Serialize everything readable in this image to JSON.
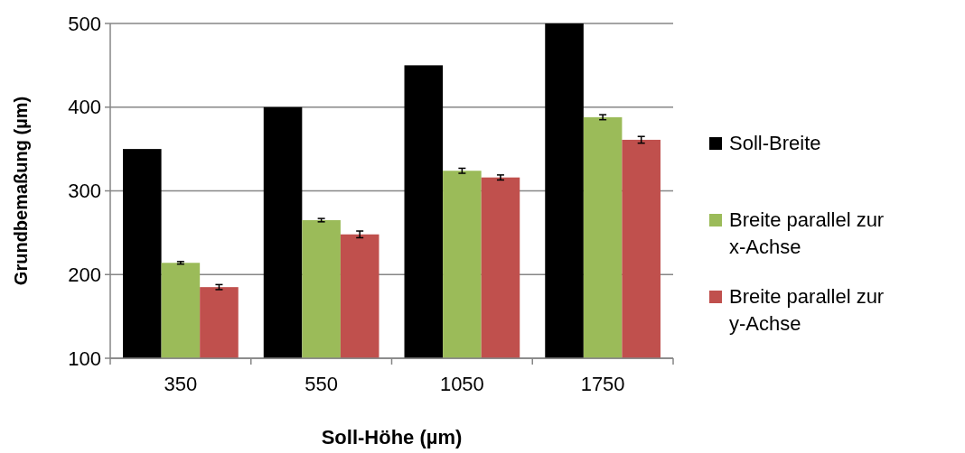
{
  "chart_data": {
    "type": "bar",
    "xlabel": "Soll-Höhe (µm)",
    "ylabel": "Grundbemaßung (µm)",
    "categories": [
      "350",
      "550",
      "1050",
      "1750"
    ],
    "series": [
      {
        "name": "Soll-Breite",
        "color": "#000000",
        "values": [
          350,
          400,
          450,
          500
        ]
      },
      {
        "name": "Breite parallel zur x-Achse",
        "color": "#9bbb59",
        "values": [
          214,
          265,
          324,
          388
        ],
        "errors": [
          1.5,
          2,
          3,
          3
        ]
      },
      {
        "name": "Breite parallel zur y-Achse",
        "color": "#c0504d",
        "values": [
          185,
          248,
          316,
          361
        ],
        "errors": [
          3,
          4,
          3,
          4
        ]
      }
    ],
    "ylim": [
      100,
      500
    ],
    "yticks": [
      100,
      200,
      300,
      400,
      500
    ],
    "grid": "y",
    "legend": "right"
  }
}
